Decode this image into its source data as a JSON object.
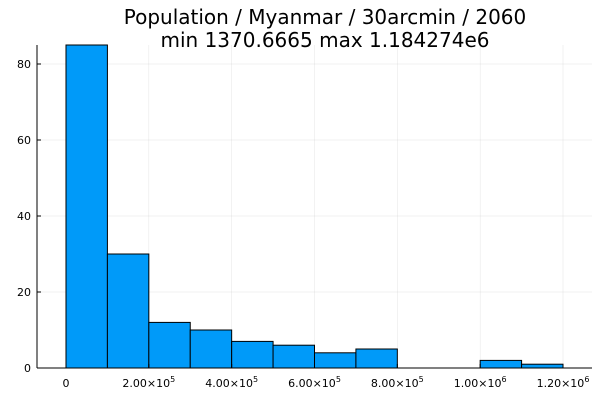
{
  "chart_data": {
    "type": "bar",
    "title": "Population / Myanmar / 30arcmin / 2060",
    "subtitle": "min 1370.6665  max 1.184274e6",
    "xlabel": "",
    "ylabel": "",
    "bin_edges": [
      0,
      100000,
      200000,
      300000,
      400000,
      500000,
      600000,
      700000,
      800000,
      900000,
      1000000,
      1100000,
      1200000
    ],
    "values": [
      85,
      30,
      12,
      10,
      7,
      6,
      4,
      5,
      0,
      0,
      2,
      1
    ],
    "xlim": [
      -70000,
      1270000
    ],
    "ylim": [
      0,
      85
    ],
    "x_ticks": [
      {
        "value": 0,
        "label": "0"
      },
      {
        "value": 200000,
        "label": "2.00×10",
        "exp": "5"
      },
      {
        "value": 400000,
        "label": "4.00×10",
        "exp": "5"
      },
      {
        "value": 600000,
        "label": "6.00×10",
        "exp": "5"
      },
      {
        "value": 800000,
        "label": "8.00×10",
        "exp": "5"
      },
      {
        "value": 1000000,
        "label": "1.00×10",
        "exp": "6"
      },
      {
        "value": 1200000,
        "label": "1.20×10",
        "exp": "6"
      }
    ],
    "y_ticks": [
      0,
      20,
      40,
      60,
      80
    ],
    "grid": true,
    "legend": "none",
    "bar_color": "#009af9",
    "edge_color": "#000000"
  }
}
